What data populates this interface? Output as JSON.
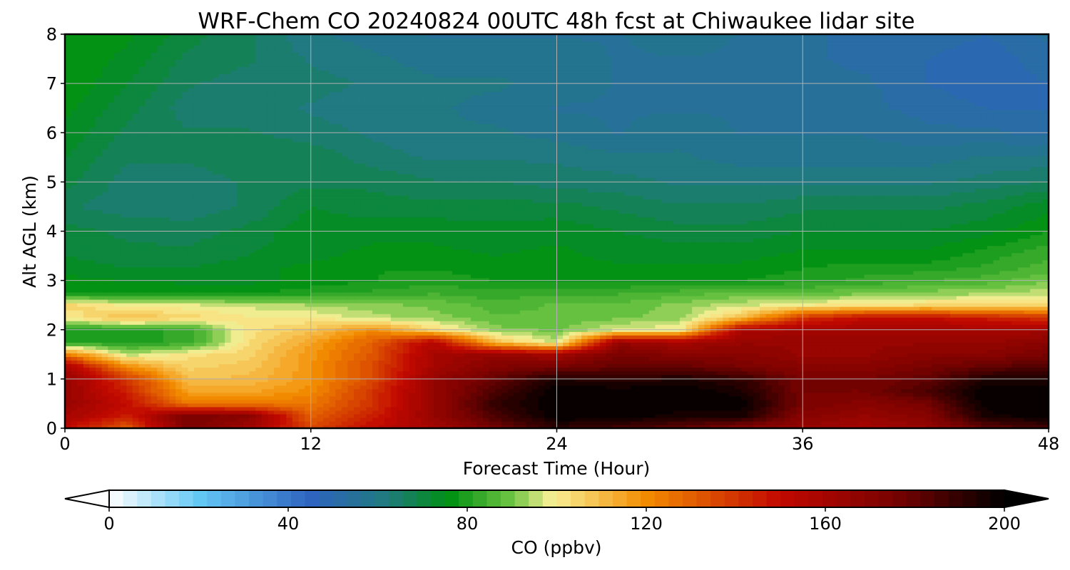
{
  "chart_data": {
    "type": "heatmap",
    "title": "WRF-Chem CO  20240824 00UTC 48h fcst at Chiwaukee lidar site",
    "xlabel": "Forecast Time (Hour)",
    "ylabel": "Alt AGL (km)",
    "xlim": [
      0,
      48
    ],
    "ylim": [
      0,
      8
    ],
    "xticks": [
      0,
      12,
      24,
      36,
      48
    ],
    "yticks": [
      0,
      1,
      2,
      3,
      4,
      5,
      6,
      7,
      8
    ],
    "grid": true,
    "colorbar": {
      "label": "CO  (ppbv)",
      "min": 0,
      "max": 200,
      "ticks": [
        0,
        40,
        80,
        120,
        160,
        200
      ],
      "extend": "both",
      "levels": 64,
      "colors": [
        {
          "value": 0,
          "color": "#ffffff"
        },
        {
          "value": 20,
          "color": "#64c8f5"
        },
        {
          "value": 45,
          "color": "#2e63bf"
        },
        {
          "value": 62,
          "color": "#207a7e"
        },
        {
          "value": 76,
          "color": "#009012"
        },
        {
          "value": 90,
          "color": "#6ec443"
        },
        {
          "value": 99,
          "color": "#f9f096"
        },
        {
          "value": 120,
          "color": "#f38b00"
        },
        {
          "value": 150,
          "color": "#c10800"
        },
        {
          "value": 175,
          "color": "#7a0200"
        },
        {
          "value": 200,
          "color": "#000000"
        }
      ]
    },
    "x": [
      0,
      3,
      6,
      9,
      12,
      15,
      18,
      21,
      24,
      27,
      30,
      33,
      36,
      39,
      42,
      45,
      48
    ],
    "y": [
      0.0,
      0.25,
      0.5,
      0.75,
      1.0,
      1.25,
      1.5,
      1.75,
      2.0,
      2.25,
      2.5,
      2.75,
      3.0,
      3.25,
      3.5,
      4.0,
      4.5,
      5.0,
      5.5,
      6.0,
      6.5,
      7.0,
      7.5,
      8.0
    ],
    "values": [
      [
        150,
        130,
        175,
        160,
        135,
        150,
        160,
        175,
        190,
        185,
        180,
        170,
        165,
        160,
        165,
        180,
        185
      ],
      [
        160,
        145,
        175,
        170,
        130,
        145,
        165,
        185,
        200,
        200,
        195,
        195,
        170,
        165,
        170,
        195,
        200
      ],
      [
        165,
        150,
        125,
        125,
        125,
        140,
        165,
        190,
        200,
        200,
        200,
        200,
        175,
        170,
        175,
        200,
        200
      ],
      [
        165,
        145,
        115,
        115,
        120,
        140,
        165,
        185,
        200,
        200,
        200,
        195,
        175,
        175,
        185,
        200,
        200
      ],
      [
        165,
        140,
        110,
        110,
        118,
        135,
        165,
        180,
        195,
        190,
        195,
        190,
        175,
        175,
        180,
        195,
        195
      ],
      [
        160,
        120,
        105,
        108,
        118,
        135,
        160,
        172,
        175,
        180,
        180,
        175,
        170,
        170,
        175,
        180,
        185
      ],
      [
        125,
        95,
        102,
        105,
        118,
        132,
        160,
        165,
        160,
        175,
        170,
        170,
        165,
        165,
        170,
        170,
        175
      ],
      [
        80,
        80,
        82,
        103,
        115,
        130,
        155,
        110,
        95,
        165,
        160,
        165,
        165,
        165,
        165,
        165,
        170
      ],
      [
        80,
        80,
        82,
        102,
        108,
        120,
        105,
        92,
        90,
        98,
        100,
        158,
        160,
        160,
        160,
        160,
        160
      ],
      [
        100,
        110,
        105,
        100,
        100,
        95,
        92,
        88,
        88,
        90,
        92,
        110,
        140,
        150,
        150,
        145,
        140
      ],
      [
        105,
        100,
        98,
        96,
        94,
        92,
        90,
        86,
        88,
        88,
        92,
        96,
        100,
        102,
        104,
        104,
        105
      ],
      [
        78,
        78,
        78,
        78,
        80,
        82,
        84,
        82,
        84,
        84,
        86,
        88,
        88,
        90,
        92,
        93,
        96
      ],
      [
        76,
        75,
        74,
        74,
        76,
        78,
        80,
        78,
        78,
        78,
        78,
        78,
        80,
        82,
        84,
        86,
        90
      ],
      [
        74,
        72,
        72,
        74,
        76,
        78,
        78,
        76,
        76,
        76,
        76,
        76,
        78,
        80,
        80,
        82,
        86
      ],
      [
        72,
        70,
        70,
        72,
        74,
        76,
        76,
        75,
        76,
        74,
        74,
        74,
        76,
        76,
        76,
        80,
        84
      ],
      [
        70,
        68,
        67,
        70,
        74,
        74,
        74,
        73,
        74,
        72,
        70,
        70,
        72,
        72,
        72,
        74,
        78
      ],
      [
        66,
        64,
        64,
        66,
        72,
        70,
        70,
        70,
        70,
        68,
        66,
        66,
        68,
        68,
        68,
        70,
        74
      ],
      [
        70,
        64,
        64,
        66,
        68,
        68,
        66,
        66,
        64,
        64,
        62,
        62,
        62,
        62,
        62,
        64,
        66
      ],
      [
        72,
        66,
        66,
        68,
        68,
        64,
        62,
        62,
        62,
        60,
        60,
        58,
        58,
        58,
        58,
        60,
        60
      ],
      [
        74,
        68,
        66,
        66,
        64,
        62,
        60,
        60,
        58,
        56,
        58,
        56,
        56,
        56,
        54,
        54,
        52
      ],
      [
        76,
        70,
        64,
        64,
        62,
        60,
        60,
        58,
        56,
        56,
        56,
        56,
        54,
        54,
        52,
        50,
        50
      ],
      [
        78,
        72,
        66,
        64,
        64,
        62,
        60,
        60,
        58,
        56,
        56,
        56,
        54,
        54,
        50,
        48,
        50
      ],
      [
        78,
        74,
        68,
        66,
        62,
        60,
        58,
        58,
        58,
        56,
        56,
        56,
        54,
        52,
        50,
        48,
        52
      ],
      [
        78,
        76,
        70,
        66,
        60,
        58,
        56,
        56,
        56,
        56,
        58,
        56,
        54,
        52,
        52,
        50,
        54
      ]
    ]
  }
}
